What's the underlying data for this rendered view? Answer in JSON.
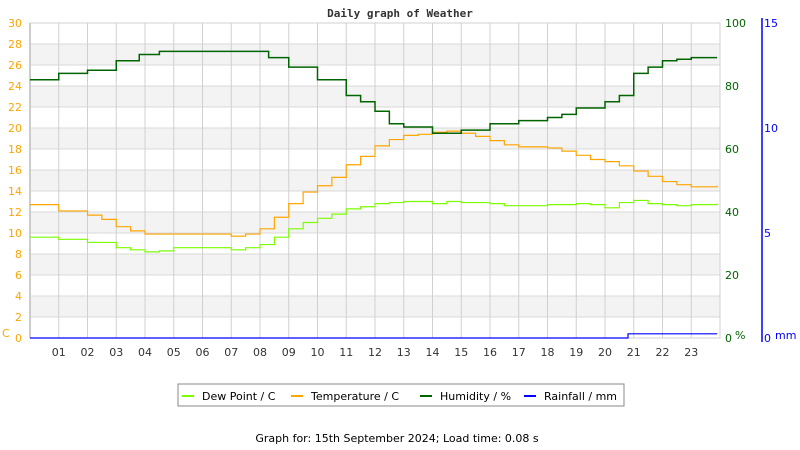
{
  "chart_data": {
    "type": "line",
    "title": "Daily graph of Weather",
    "footer": "Graph for: 15th September 2024; Load time: 0.08 s",
    "x_ticks": [
      "01",
      "02",
      "03",
      "04",
      "05",
      "06",
      "07",
      "08",
      "09",
      "10",
      "11",
      "12",
      "13",
      "14",
      "15",
      "16",
      "17",
      "18",
      "19",
      "20",
      "21",
      "22",
      "23"
    ],
    "xlim": [
      0,
      24
    ],
    "axes": {
      "left": {
        "unit": "C",
        "range": [
          0,
          30
        ],
        "ticks": [
          "0",
          "2",
          "4",
          "6",
          "8",
          "10",
          "12",
          "14",
          "16",
          "18",
          "20",
          "22",
          "24",
          "26",
          "28",
          "30"
        ],
        "color": "#FFA500"
      },
      "right": {
        "unit": "%",
        "range": [
          0,
          100
        ],
        "ticks": [
          "0",
          "20",
          "40",
          "60",
          "80",
          "100"
        ],
        "color": "#006400"
      },
      "rain": {
        "unit": "mm",
        "range": [
          0,
          15
        ],
        "ticks": [
          "0",
          "5",
          "10",
          "15"
        ],
        "color": "#0000FF"
      }
    },
    "series": [
      {
        "name": "Dew Point / C",
        "axis": "left",
        "color": "#7CFC00",
        "x": [
          0,
          1,
          2,
          3,
          3.5,
          4,
          4.5,
          5,
          6,
          7,
          7.5,
          8,
          8.5,
          9,
          9.5,
          10,
          10.5,
          11,
          11.5,
          12,
          12.5,
          13,
          14,
          14.5,
          15,
          16,
          16.5,
          17,
          18,
          18.5,
          19,
          19.5,
          20,
          20.5,
          21,
          21.5,
          22,
          22.5,
          23,
          23.9
        ],
        "y": [
          9.6,
          9.4,
          9.1,
          8.6,
          8.4,
          8.2,
          8.3,
          8.6,
          8.6,
          8.4,
          8.6,
          8.9,
          9.6,
          10.4,
          11.0,
          11.4,
          11.8,
          12.3,
          12.5,
          12.8,
          12.9,
          13.0,
          12.8,
          13.0,
          12.9,
          12.8,
          12.6,
          12.6,
          12.7,
          12.7,
          12.8,
          12.7,
          12.4,
          12.9,
          13.1,
          12.8,
          12.7,
          12.6,
          12.7,
          12.8
        ]
      },
      {
        "name": "Temperature / C",
        "axis": "left",
        "color": "#FFA500",
        "x": [
          0,
          1,
          2,
          2.5,
          3,
          3.5,
          4,
          5,
          6,
          7,
          7.5,
          8,
          8.5,
          9,
          9.5,
          10,
          10.5,
          11,
          11.5,
          12,
          12.5,
          13,
          13.5,
          14,
          14.5,
          15,
          15.5,
          16,
          16.5,
          17,
          17.5,
          18,
          18.5,
          19,
          19.5,
          20,
          20.5,
          21,
          21.5,
          22,
          22.5,
          23,
          23.5,
          23.9
        ],
        "y": [
          12.7,
          12.1,
          11.7,
          11.3,
          10.6,
          10.2,
          9.9,
          9.9,
          9.9,
          9.7,
          9.9,
          10.4,
          11.5,
          12.8,
          13.9,
          14.5,
          15.3,
          16.5,
          17.3,
          18.3,
          18.9,
          19.3,
          19.4,
          19.6,
          19.7,
          19.5,
          19.2,
          18.8,
          18.4,
          18.2,
          18.2,
          18.1,
          17.8,
          17.4,
          17.0,
          16.8,
          16.4,
          15.9,
          15.4,
          14.9,
          14.6,
          14.4,
          14.4,
          14.5
        ]
      },
      {
        "name": "Humidity / %",
        "axis": "right",
        "color": "#006400",
        "x": [
          0,
          1,
          2,
          3,
          3.8,
          4.5,
          5,
          6,
          7,
          8,
          8.3,
          9,
          10,
          11,
          11.5,
          12,
          12.5,
          13,
          14,
          15,
          15.5,
          16,
          17,
          18,
          18.5,
          19,
          20,
          20.5,
          21,
          21.5,
          22,
          22.5,
          23,
          23.9
        ],
        "y": [
          82,
          84,
          85,
          88,
          90,
          91,
          91,
          91,
          91,
          91,
          89,
          86,
          82,
          77,
          75,
          72,
          68,
          67,
          65,
          66,
          66,
          68,
          69,
          70,
          71,
          73,
          75,
          77,
          84,
          86,
          88,
          88.5,
          89,
          89
        ]
      },
      {
        "name": "Rainfall / mm",
        "axis": "rain",
        "color": "#0000FF",
        "x": [
          0,
          20.8,
          20.8,
          23.9
        ],
        "y": [
          0,
          0,
          0.2,
          0.2
        ]
      }
    ]
  }
}
